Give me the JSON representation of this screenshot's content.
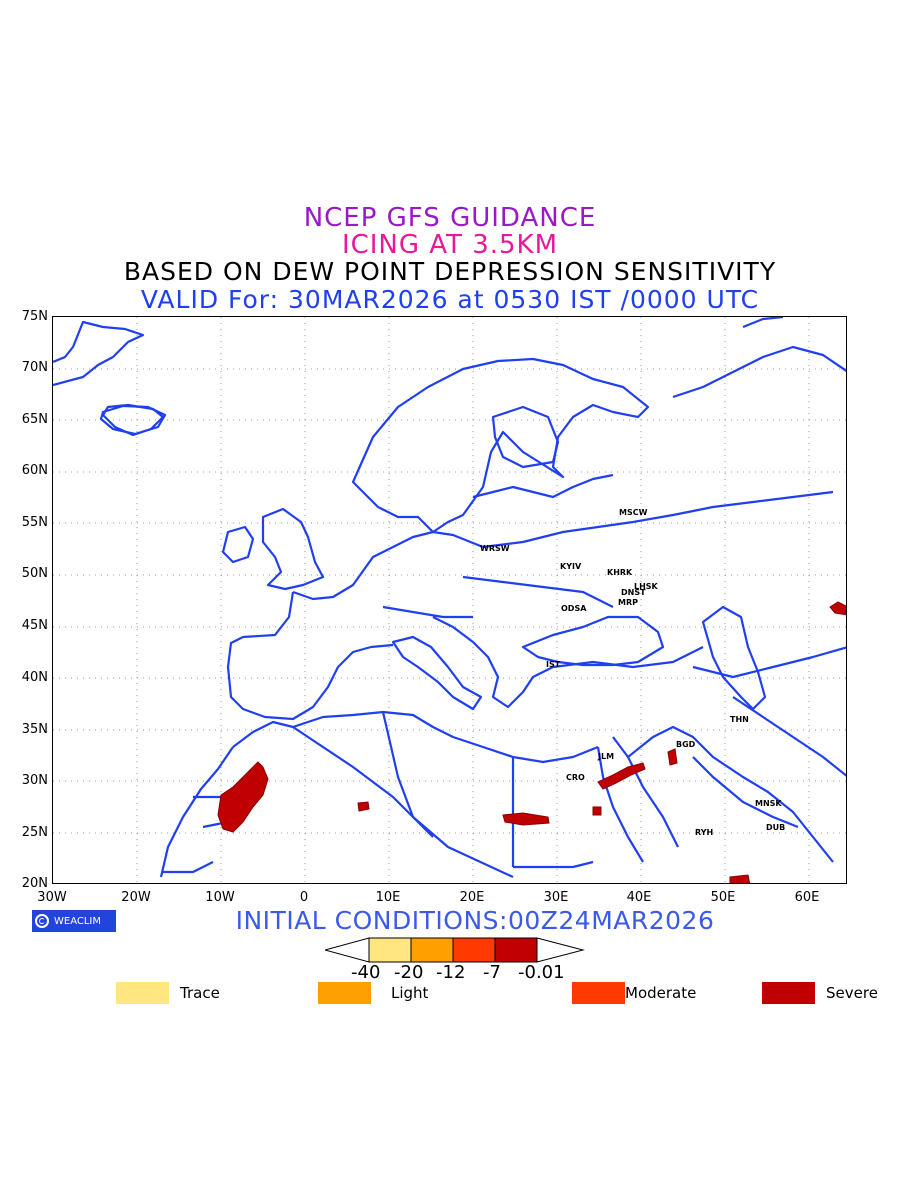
{
  "titles": {
    "line1": "NCEP GFS GUIDANCE",
    "line2": "ICING AT 3.5KM",
    "line3": "BASED ON DEW POINT DEPRESSION SENSITIVITY",
    "line4": "VALID For: 30MAR2026 at 0530 IST /0000 UTC"
  },
  "map": {
    "lat_labels": [
      "75N",
      "70N",
      "65N",
      "60N",
      "55N",
      "50N",
      "45N",
      "40N",
      "35N",
      "30N",
      "25N",
      "20N"
    ],
    "lon_labels": [
      "30W",
      "20W",
      "10W",
      "0",
      "10E",
      "20E",
      "30E",
      "40E",
      "50E",
      "60E"
    ],
    "cities": [
      {
        "name": "MSCW"
      },
      {
        "name": "WRSW"
      },
      {
        "name": "KYIV"
      },
      {
        "name": "KHRK"
      },
      {
        "name": "LHSK"
      },
      {
        "name": "DNST"
      },
      {
        "name": "MRP"
      },
      {
        "name": "ODSA"
      },
      {
        "name": "IST"
      },
      {
        "name": "THN"
      },
      {
        "name": "BGD"
      },
      {
        "name": "JLM"
      },
      {
        "name": "CRO"
      },
      {
        "name": "MNSK"
      },
      {
        "name": "RYH"
      },
      {
        "name": "DUB"
      }
    ],
    "colors": {
      "coast": "#1f3ff0",
      "grid": "#999999",
      "icing": "#c00000"
    }
  },
  "logo": {
    "text": "WEACLIM"
  },
  "initial_conditions": "INITIAL CONDITIONS:00Z24MAR2026",
  "colorbar": {
    "labels": [
      "-40",
      "-20",
      "-12",
      "-7",
      "-0.01"
    ],
    "colors": [
      "#ffe680",
      "#ffa000",
      "#ff3a00",
      "#c00000"
    ]
  },
  "legend": [
    {
      "label": "Trace",
      "color": "#ffe680"
    },
    {
      "label": "Light",
      "color": "#ffa000"
    },
    {
      "label": "Moderate",
      "color": "#ff3a00"
    },
    {
      "label": "Severe",
      "color": "#c00000"
    }
  ]
}
